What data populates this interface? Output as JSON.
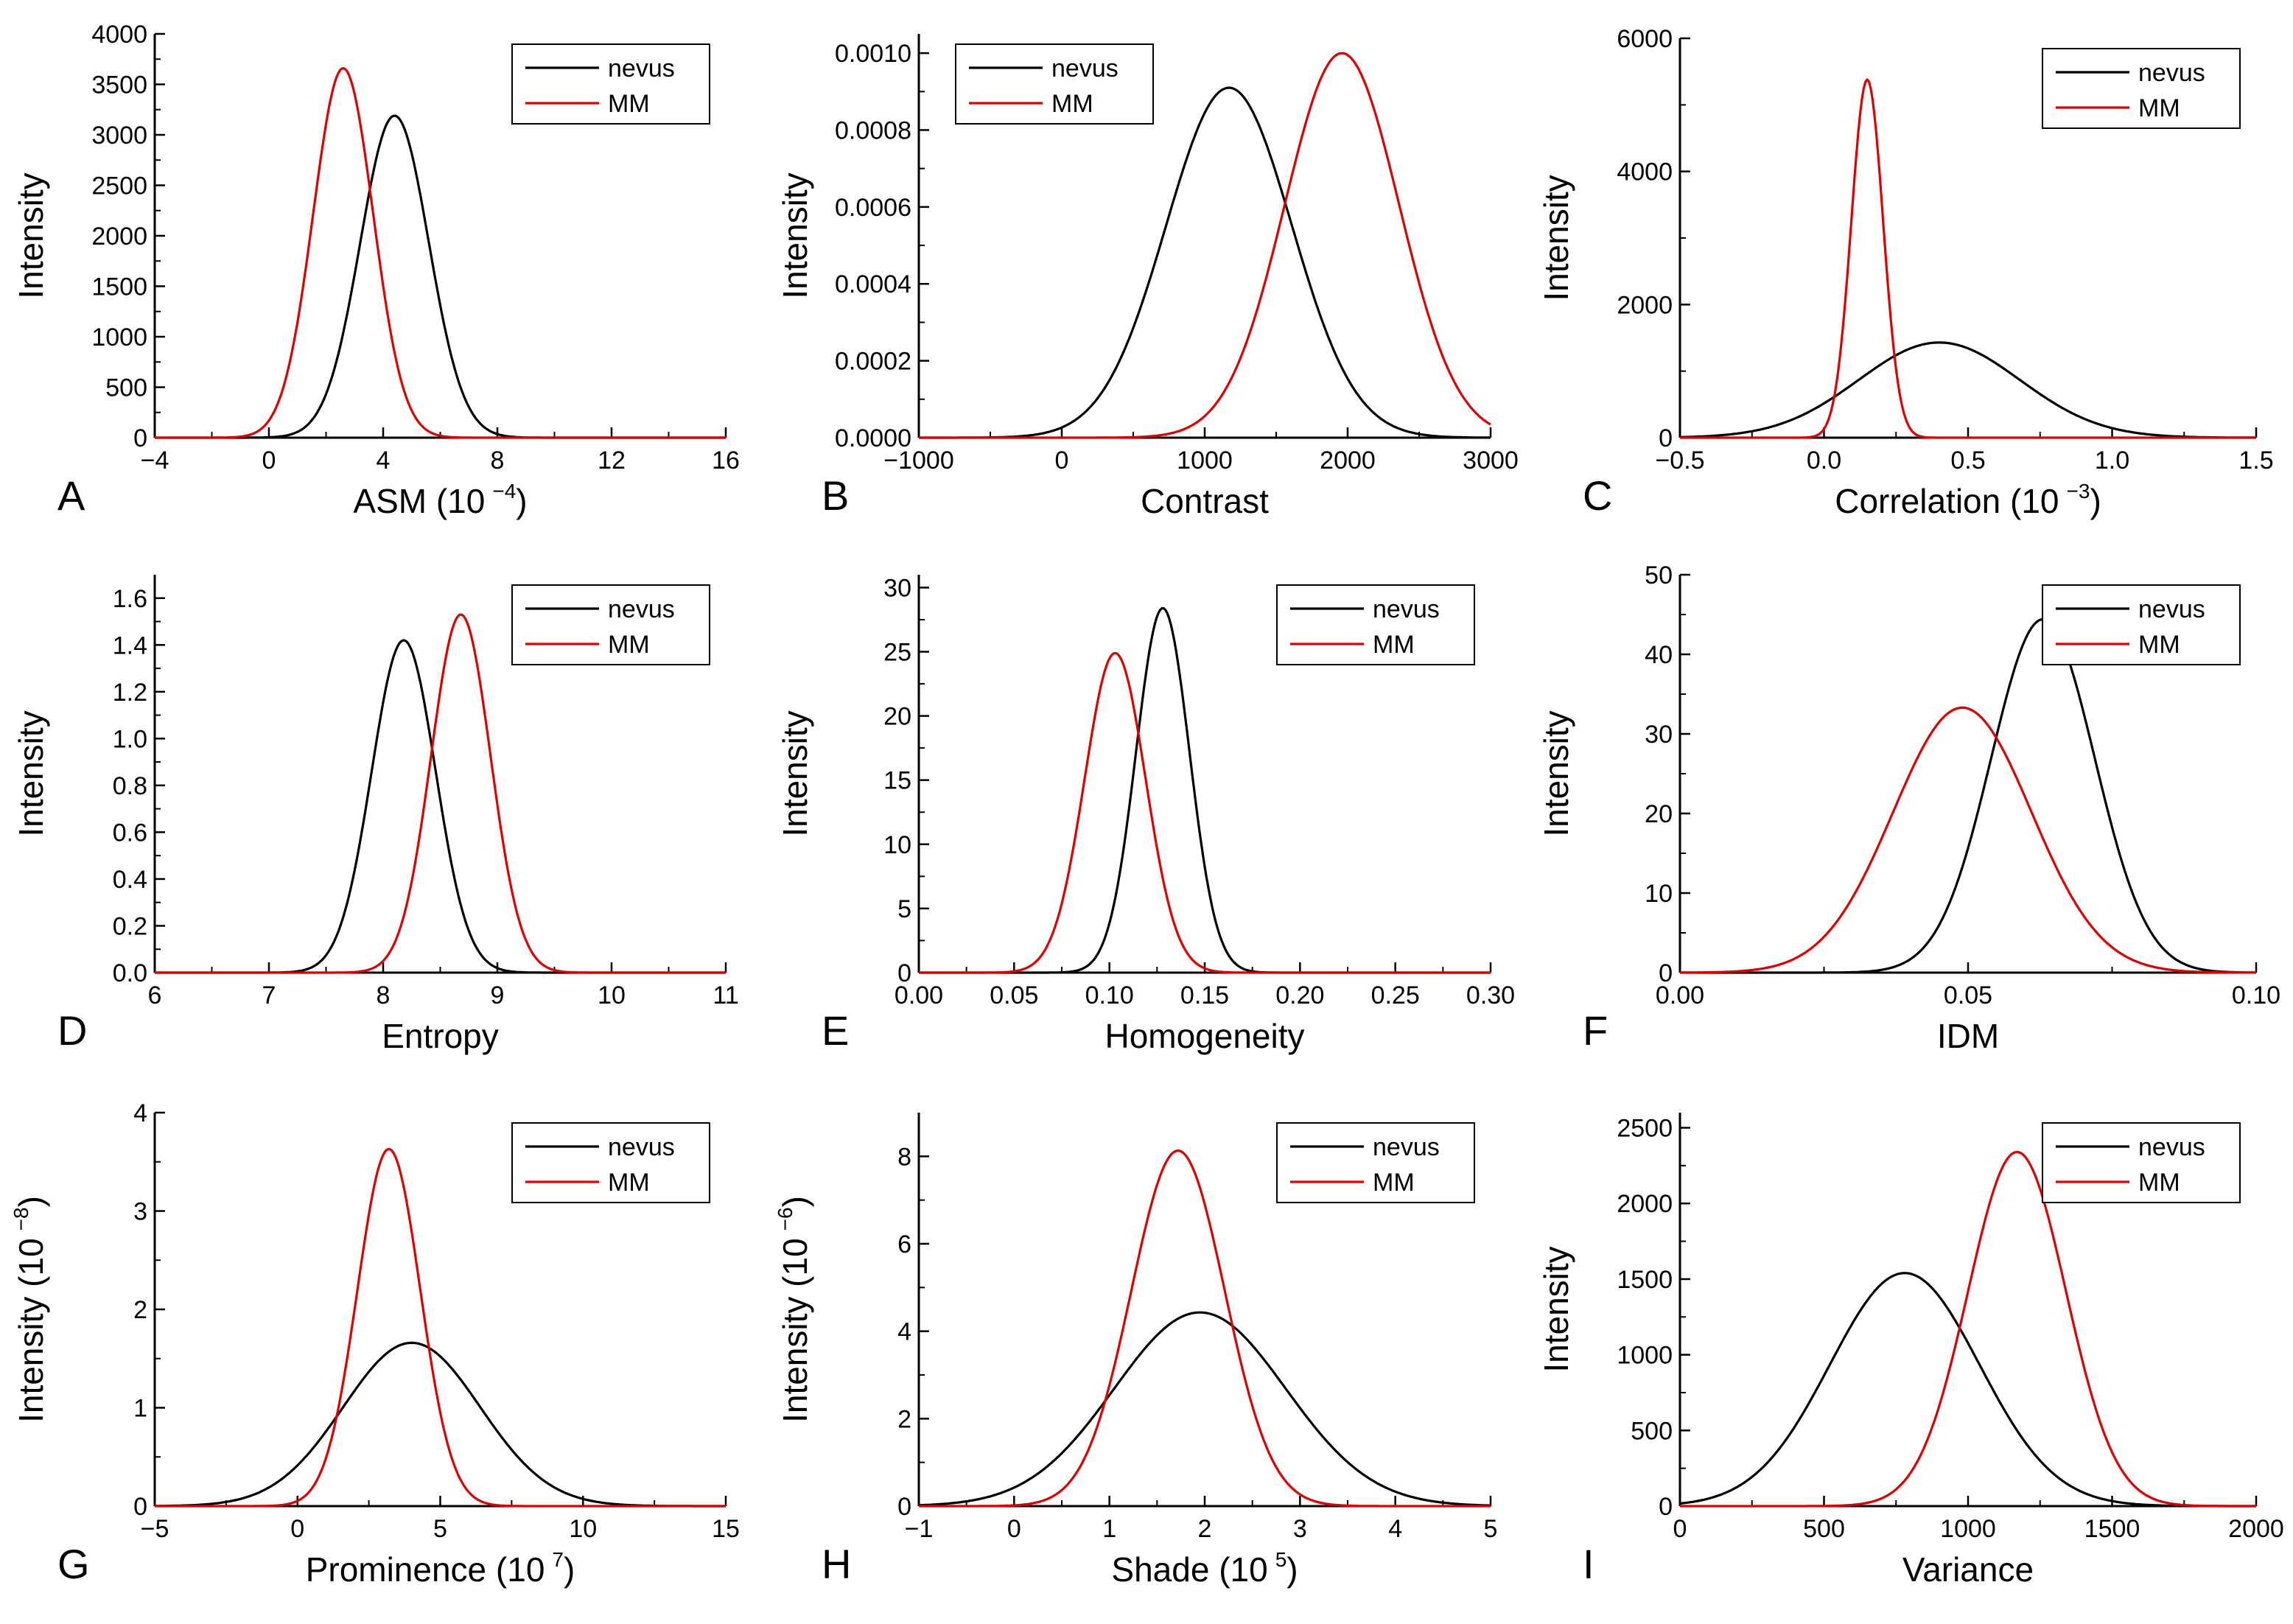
{
  "figure": {
    "colors": {
      "nevus": "#000000",
      "MM": "#e00000"
    },
    "series_names": [
      "nevus",
      "MM"
    ]
  },
  "chart_data": [
    {
      "panel": "A",
      "type": "line",
      "xlabel": "ASM (10",
      "xlabel_sup": "−4",
      "xlabel_tail": ")",
      "ylabel": "Intensity",
      "ylabel_sup": "",
      "ylabel_tail": "",
      "xlim": [
        -4,
        16
      ],
      "ylim": [
        0,
        4000
      ],
      "xticks": [
        -4,
        0,
        4,
        8,
        12,
        16
      ],
      "xtick_labels": [
        "−4",
        "0",
        "4",
        "8",
        "12",
        "16"
      ],
      "yticks": [
        0,
        500,
        1000,
        1500,
        2000,
        2500,
        3000,
        3500,
        4000
      ],
      "ytick_labels": [
        "0",
        "500",
        "1000",
        "1500",
        "2000",
        "2500",
        "3000",
        "3500",
        "4000"
      ],
      "legend": "top-right",
      "series": [
        {
          "name": "nevus",
          "distribution": "gaussian",
          "mean": 4.4,
          "sd": 1.2,
          "peak": 3190
        },
        {
          "name": "MM",
          "distribution": "gaussian",
          "mean": 2.6,
          "sd": 1.05,
          "peak": 3660
        }
      ]
    },
    {
      "panel": "B",
      "type": "line",
      "xlabel": "Contrast",
      "xlabel_sup": "",
      "xlabel_tail": "",
      "ylabel": "Intensity",
      "ylabel_sup": "",
      "ylabel_tail": "",
      "xlim": [
        -1000,
        3000
      ],
      "ylim": [
        0,
        0.00105
      ],
      "xticks": [
        -1000,
        0,
        1000,
        2000,
        3000
      ],
      "xtick_labels": [
        "−1000",
        "0",
        "1000",
        "2000",
        "3000"
      ],
      "yticks": [
        0,
        0.0002,
        0.0004,
        0.0006,
        0.0008,
        0.001
      ],
      "ytick_labels": [
        "0.0000",
        "0.0002",
        "0.0004",
        "0.0006",
        "0.0008",
        "0.0010"
      ],
      "legend": "top-left",
      "series": [
        {
          "name": "nevus",
          "distribution": "gaussian",
          "mean": 1170,
          "sd": 440,
          "peak": 0.00091
        },
        {
          "name": "MM",
          "distribution": "gaussian",
          "mean": 1960,
          "sd": 400,
          "peak": 0.001
        }
      ]
    },
    {
      "panel": "C",
      "type": "line",
      "xlabel": "Correlation (10",
      "xlabel_sup": "−3",
      "xlabel_tail": ")",
      "ylabel": "Intensity",
      "ylabel_sup": "",
      "ylabel_tail": "",
      "xlim": [
        -0.5,
        1.5
      ],
      "ylim": [
        0,
        6000
      ],
      "xticks": [
        -0.5,
        0,
        0.5,
        1,
        1.5
      ],
      "xtick_labels": [
        "−0.5",
        "0.0",
        "0.5",
        "1.0",
        "1.5"
      ],
      "yticks": [
        0,
        2000,
        4000,
        6000
      ],
      "ytick_labels": [
        "0",
        "2000",
        "4000",
        "6000"
      ],
      "legend": "top-right",
      "series": [
        {
          "name": "nevus",
          "distribution": "gaussian",
          "mean": 0.4,
          "sd": 0.28,
          "peak": 1430
        },
        {
          "name": "MM",
          "distribution": "gaussian",
          "mean": 0.15,
          "sd": 0.055,
          "peak": 5380
        }
      ]
    },
    {
      "panel": "D",
      "type": "line",
      "xlabel": "Entropy",
      "xlabel_sup": "",
      "xlabel_tail": "",
      "ylabel": "Intensity",
      "ylabel_sup": "",
      "ylabel_tail": "",
      "xlim": [
        6,
        11
      ],
      "ylim": [
        0,
        1.7
      ],
      "xticks": [
        6,
        7,
        8,
        9,
        10,
        11
      ],
      "xtick_labels": [
        "6",
        "7",
        "8",
        "9",
        "10",
        "11"
      ],
      "yticks": [
        0,
        0.2,
        0.4,
        0.6,
        0.8,
        1.0,
        1.2,
        1.4,
        1.6
      ],
      "ytick_labels": [
        "0.0",
        "0.2",
        "0.4",
        "0.6",
        "0.8",
        "1.0",
        "1.2",
        "1.4",
        "1.6"
      ],
      "legend": "top-right",
      "series": [
        {
          "name": "nevus",
          "distribution": "gaussian",
          "mean": 8.18,
          "sd": 0.28,
          "peak": 1.42
        },
        {
          "name": "MM",
          "distribution": "gaussian",
          "mean": 8.68,
          "sd": 0.26,
          "peak": 1.53
        }
      ]
    },
    {
      "panel": "E",
      "type": "line",
      "xlabel": "Homogeneity",
      "xlabel_sup": "",
      "xlabel_tail": "",
      "ylabel": "Intensity",
      "ylabel_sup": "",
      "ylabel_tail": "",
      "xlim": [
        0,
        0.3
      ],
      "ylim": [
        0,
        31
      ],
      "xticks": [
        0,
        0.05,
        0.1,
        0.15,
        0.2,
        0.25,
        0.3
      ],
      "xtick_labels": [
        "0.00",
        "0.05",
        "0.10",
        "0.15",
        "0.20",
        "0.25",
        "0.30"
      ],
      "yticks": [
        0,
        5,
        10,
        15,
        20,
        25,
        30
      ],
      "ytick_labels": [
        "0",
        "5",
        "10",
        "15",
        "20",
        "25",
        "30"
      ],
      "legend": "top-right",
      "series": [
        {
          "name": "nevus",
          "distribution": "gaussian",
          "mean": 0.128,
          "sd": 0.014,
          "peak": 28.4
        },
        {
          "name": "MM",
          "distribution": "gaussian",
          "mean": 0.103,
          "sd": 0.016,
          "peak": 24.9
        }
      ]
    },
    {
      "panel": "F",
      "type": "line",
      "xlabel": "IDM",
      "xlabel_sup": "",
      "xlabel_tail": "",
      "ylabel": "Intensity",
      "ylabel_sup": "",
      "ylabel_tail": "",
      "xlim": [
        0,
        0.1
      ],
      "ylim": [
        0,
        50
      ],
      "xticks": [
        0,
        0.05,
        0.1
      ],
      "xtick_labels": [
        "0.00",
        "0.05",
        "0.10"
      ],
      "yticks": [
        0,
        10,
        20,
        30,
        40,
        50
      ],
      "ytick_labels": [
        "0",
        "10",
        "20",
        "30",
        "40",
        "50"
      ],
      "legend": "top-right",
      "series": [
        {
          "name": "nevus",
          "distribution": "gaussian",
          "mean": 0.063,
          "sd": 0.009,
          "peak": 44.4
        },
        {
          "name": "MM",
          "distribution": "gaussian",
          "mean": 0.049,
          "sd": 0.012,
          "peak": 33.3
        }
      ]
    },
    {
      "panel": "G",
      "type": "line",
      "xlabel": "Prominence (10",
      "xlabel_sup": "7",
      "xlabel_tail": ")",
      "ylabel": "Intensity (10",
      "ylabel_sup": "−8",
      "ylabel_tail": ")",
      "xlim": [
        -5,
        15
      ],
      "ylim": [
        0,
        4
      ],
      "xticks": [
        -5,
        0,
        5,
        10,
        15
      ],
      "xtick_labels": [
        "−5",
        "0",
        "5",
        "10",
        "15"
      ],
      "yticks": [
        0,
        1,
        2,
        3,
        4
      ],
      "ytick_labels": [
        "0",
        "1",
        "2",
        "3",
        "4"
      ],
      "legend": "top-right",
      "series": [
        {
          "name": "nevus",
          "distribution": "gaussian",
          "mean": 4.0,
          "sd": 2.4,
          "peak": 1.66
        },
        {
          "name": "MM",
          "distribution": "gaussian",
          "mean": 3.2,
          "sd": 1.1,
          "peak": 3.63
        }
      ]
    },
    {
      "panel": "H",
      "type": "line",
      "xlabel": "Shade (10",
      "xlabel_sup": "5",
      "xlabel_tail": ")",
      "ylabel": "Intensity (10",
      "ylabel_sup": "−6",
      "ylabel_tail": ")",
      "xlim": [
        -1,
        5
      ],
      "ylim": [
        0,
        9
      ],
      "xticks": [
        -1,
        0,
        1,
        2,
        3,
        4,
        5
      ],
      "xtick_labels": [
        "−1",
        "0",
        "1",
        "2",
        "3",
        "4",
        "5"
      ],
      "yticks": [
        0,
        2,
        4,
        6,
        8
      ],
      "ytick_labels": [
        "0",
        "2",
        "4",
        "6",
        "8"
      ],
      "legend": "top-right",
      "series": [
        {
          "name": "nevus",
          "distribution": "gaussian",
          "mean": 1.95,
          "sd": 0.9,
          "peak": 4.43
        },
        {
          "name": "MM",
          "distribution": "gaussian",
          "mean": 1.72,
          "sd": 0.49,
          "peak": 8.13
        }
      ]
    },
    {
      "panel": "I",
      "type": "line",
      "xlabel": "Variance",
      "xlabel_sup": "",
      "xlabel_tail": "",
      "ylabel": "Intensity",
      "ylabel_sup": "",
      "ylabel_tail": "",
      "xlim": [
        0,
        2000
      ],
      "ylim": [
        0,
        2600
      ],
      "xticks": [
        0,
        500,
        1000,
        1500,
        2000
      ],
      "xtick_labels": [
        "0",
        "500",
        "1000",
        "1500",
        "2000"
      ],
      "yticks": [
        0,
        500,
        1000,
        1500,
        2000,
        2500
      ],
      "ytick_labels": [
        "0",
        "500",
        "1000",
        "1500",
        "2000",
        "2500"
      ],
      "legend": "top-right",
      "series": [
        {
          "name": "nevus",
          "distribution": "gaussian",
          "mean": 780,
          "sd": 260,
          "peak": 1540
        },
        {
          "name": "MM",
          "distribution": "gaussian",
          "mean": 1170,
          "sd": 170,
          "peak": 2340
        }
      ]
    }
  ]
}
